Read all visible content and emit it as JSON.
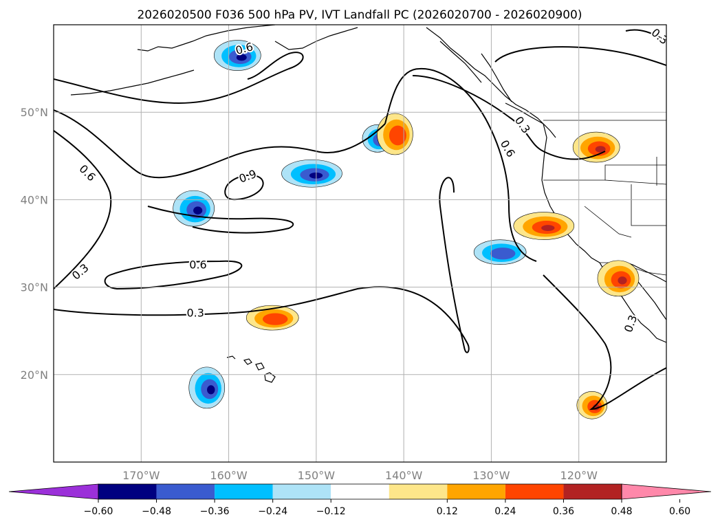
{
  "title": "2026020500 F036 500 hPa PV, IVT Landfall PC (2026020700 - 2026020900)",
  "axes": {
    "lon_ticks": [
      "170°W",
      "160°W",
      "150°W",
      "140°W",
      "130°W",
      "120°W"
    ],
    "lat_ticks": [
      "50°N",
      "40°N",
      "30°N",
      "20°N"
    ],
    "lon_values": [
      -170,
      -160,
      -150,
      -140,
      -130,
      -120
    ],
    "lat_values": [
      50,
      40,
      30,
      20
    ],
    "lon_range": [
      -180,
      -110
    ],
    "lat_range": [
      10,
      60
    ],
    "grid": true
  },
  "colorbar": {
    "labels": [
      "−0.60",
      "−0.48",
      "−0.36",
      "−0.24",
      "−0.12",
      "0.12",
      "0.24",
      "0.36",
      "0.48",
      "0.60"
    ],
    "bins": [
      "#9b30d9",
      "#000080",
      "#3a5bcf",
      "#00bfff",
      "#aee3f7",
      "#ffffff",
      "#fde68a",
      "#ffa500",
      "#ff4500",
      "#b22222",
      "#ff88aa"
    ],
    "extend": "both"
  },
  "contours": {
    "labels": [
      {
        "text": "0.6",
        "lon": -158.2,
        "lat": 57.2,
        "rot": -15
      },
      {
        "text": "0.3",
        "lon": -110.8,
        "lat": 58.6,
        "rot": 40
      },
      {
        "text": "0.3",
        "lon": -126.5,
        "lat": 48.5,
        "rot": 55
      },
      {
        "text": "0.6",
        "lon": -128.2,
        "lat": 45.8,
        "rot": 60
      },
      {
        "text": "0.6",
        "lon": -176.2,
        "lat": 43.0,
        "rot": 45
      },
      {
        "text": "0.9",
        "lon": -157.8,
        "lat": 42.6,
        "rot": -20
      },
      {
        "text": "0.3",
        "lon": -176.9,
        "lat": 31.7,
        "rot": -40
      },
      {
        "text": "0.6",
        "lon": -163.5,
        "lat": 32.5,
        "rot": 0
      },
      {
        "text": "0.3",
        "lon": -163.8,
        "lat": 27.0,
        "rot": 0
      },
      {
        "text": "0.3",
        "lon": -114.0,
        "lat": 25.8,
        "rot": -70
      }
    ]
  },
  "features": [
    {
      "name": "negative-pv-gulf-of-alaska",
      "sign": "neg",
      "level": 3,
      "lon": -159,
      "lat": 56.5
    },
    {
      "name": "negative-pv-central-pacific",
      "sign": "neg",
      "level": 2,
      "lon": -150.5,
      "lat": 43
    },
    {
      "name": "negative-pv-west-pacific",
      "sign": "neg",
      "level": 2,
      "lon": -164,
      "lat": 39
    },
    {
      "name": "negative-pv-north-pacific",
      "sign": "neg",
      "level": 1,
      "lon": -143,
      "lat": 47
    },
    {
      "name": "negative-pv-off-california",
      "sign": "neg",
      "level": 1,
      "lon": -129,
      "lat": 34
    },
    {
      "name": "negative-pv-hawaii",
      "sign": "neg",
      "level": 2,
      "lon": -162.5,
      "lat": 18.5
    },
    {
      "name": "positive-ivt-northwest-us",
      "sign": "pos",
      "level": 2,
      "lon": -118,
      "lat": 46
    },
    {
      "name": "positive-ivt-california",
      "sign": "pos",
      "level": 2,
      "lon": -124,
      "lat": 37
    },
    {
      "name": "positive-ivt-baja",
      "sign": "pos",
      "level": 2,
      "lon": -115.5,
      "lat": 31
    },
    {
      "name": "positive-ivt-mexico",
      "sign": "pos",
      "level": 2,
      "lon": -118.5,
      "lat": 16.5
    },
    {
      "name": "positive-ivt-subtropics",
      "sign": "pos",
      "level": 1,
      "lon": -155,
      "lat": 26.5
    },
    {
      "name": "positive-ivt-north-pacific",
      "sign": "pos",
      "level": 1,
      "lon": -141,
      "lat": 47.5
    }
  ]
}
